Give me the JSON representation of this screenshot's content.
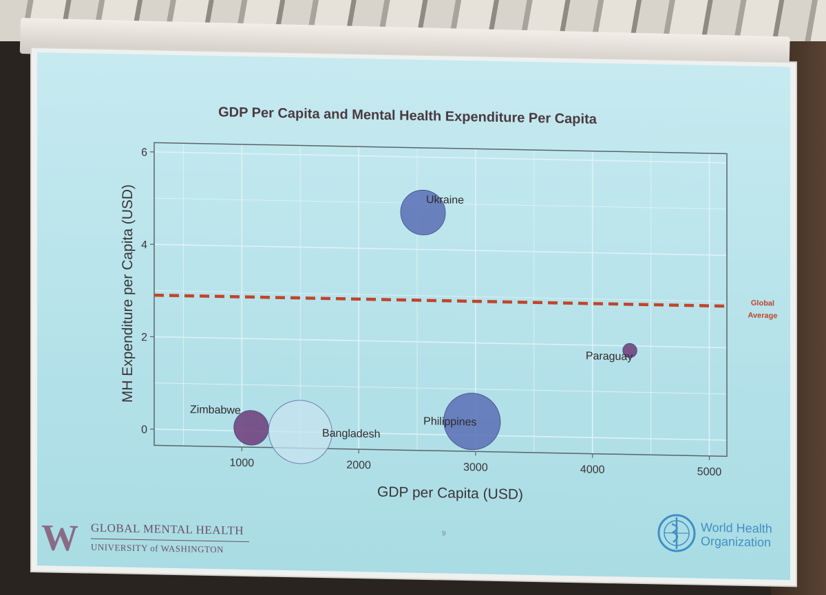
{
  "slide": {
    "page_number": "9",
    "footer_left": {
      "logo_letter": "W",
      "line1": "GLOBAL MENTAL HEALTH",
      "line2": "UNIVERSITY of WASHINGTON"
    },
    "footer_right": {
      "emblem": "who-emblem-icon",
      "line1": "World Health",
      "line2": "Organization"
    }
  },
  "chart_data": {
    "type": "scatter",
    "title": "GDP Per Capita and Mental Health Expenditure Per Capita",
    "xlabel": "GDP per Capita (USD)",
    "ylabel": "MH Expenditure per Capita (USD)",
    "xlim": [
      250,
      5150
    ],
    "ylim": [
      -0.35,
      6.2
    ],
    "x_ticks": [
      1000,
      2000,
      3000,
      4000,
      5000
    ],
    "y_ticks": [
      0,
      2,
      4,
      6
    ],
    "grid": true,
    "reference_line": {
      "value": 2.9,
      "label_line1": "Global",
      "label_line2": "Average",
      "color": "#c0452c"
    },
    "points": [
      {
        "label": "Ukraine",
        "x": 2550,
        "y": 4.8,
        "size": 0.5,
        "color": "#5b6fb5"
      },
      {
        "label": "Zimbabwe",
        "x": 1080,
        "y": 0.07,
        "size": 0.3,
        "color": "#6d3b78"
      },
      {
        "label": "Bangladesh",
        "x": 1500,
        "y": 0.0,
        "size": 1.0,
        "color": "#c7e4f0"
      },
      {
        "label": "Philippines",
        "x": 2970,
        "y": 0.3,
        "size": 0.8,
        "color": "#5b6fb5"
      },
      {
        "label": "Paraguay",
        "x": 4320,
        "y": 1.9,
        "size": 0.05,
        "color": "#6d3b78"
      }
    ]
  }
}
